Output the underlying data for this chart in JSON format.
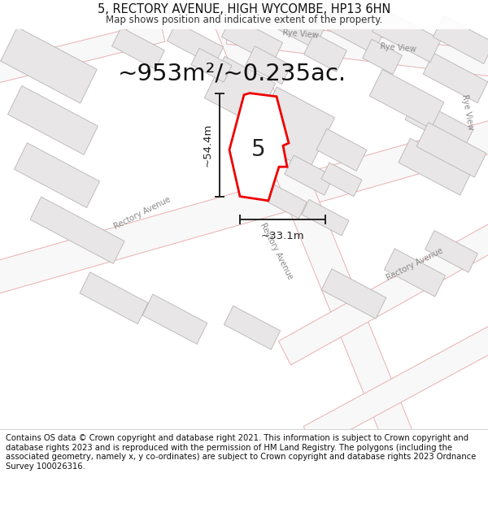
{
  "title": "5, RECTORY AVENUE, HIGH WYCOMBE, HP13 6HN",
  "subtitle": "Map shows position and indicative extent of the property.",
  "area_label": "~953m²/~0.235ac.",
  "property_number": "5",
  "dim_vertical": "~54.4m",
  "dim_horizontal": "~33.1m",
  "footer": "Contains OS data © Crown copyright and database right 2021. This information is subject to Crown copyright and database rights 2023 and is reproduced with the permission of HM Land Registry. The polygons (including the associated geometry, namely x, y co-ordinates) are subject to Crown copyright and database rights 2023 Ordnance Survey 100026316.",
  "map_bg": "#f9f8f8",
  "road_outline_color": "#e8b0b0",
  "building_edge": "#b8b4b4",
  "building_fill": "#e8e6e6",
  "building_fill2": "#f0eeed",
  "plot_color": "#ee0000",
  "plot_fill": "#ffffff",
  "footer_bg": "#ffffff",
  "dim_color": "#222222",
  "label_color": "#888888",
  "title_fontsize": 10.5,
  "subtitle_fontsize": 8.5,
  "area_fontsize": 21,
  "footer_fontsize": 7.2,
  "prop_num_fontsize": 20
}
